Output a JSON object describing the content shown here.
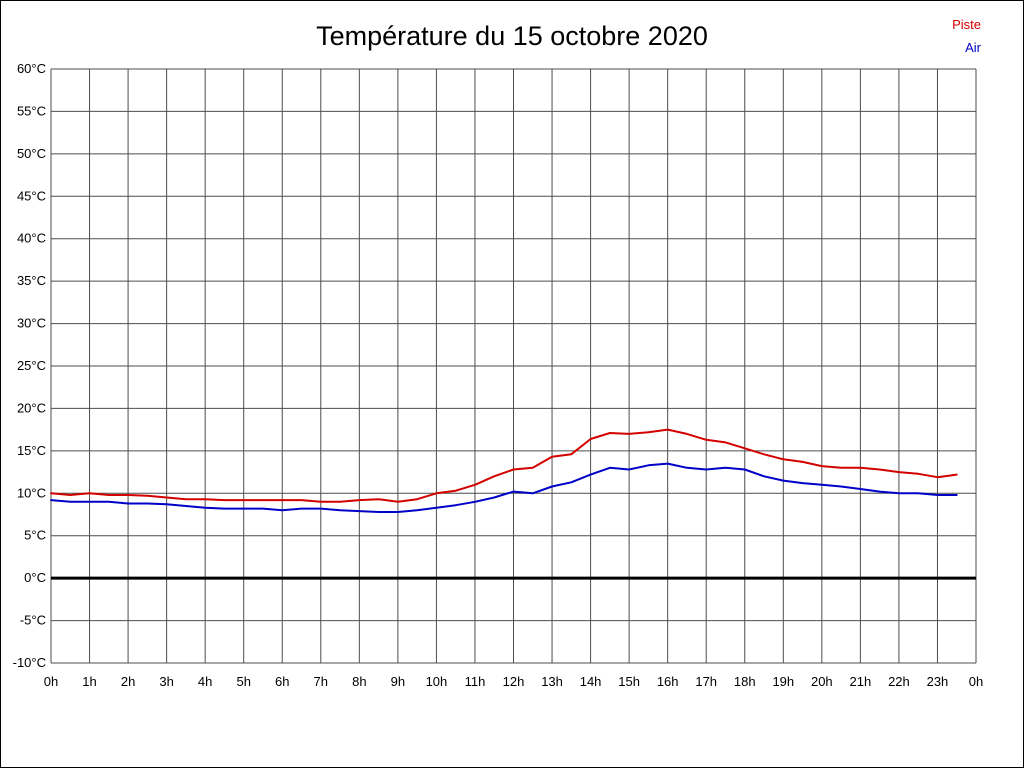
{
  "chart_data": {
    "type": "line",
    "title": "Température du 15 octobre 2020",
    "xlabel": "",
    "ylabel": "",
    "xlim": [
      0,
      24
    ],
    "ylim": [
      -10,
      60
    ],
    "grid": true,
    "legend_position": "top-right",
    "background": "#ffffff",
    "grid_color": "#4d4d4d",
    "zero_line": {
      "value": 0,
      "color": "#000000",
      "width": 3
    },
    "ytick_values": [
      60,
      55,
      50,
      45,
      40,
      35,
      30,
      25,
      20,
      15,
      10,
      5,
      0,
      -5,
      -10
    ],
    "ytick_labels": [
      "60°C",
      "55°C",
      "50°C",
      "45°C",
      "40°C",
      "35°C",
      "30°C",
      "25°C",
      "20°C",
      "15°C",
      "10°C",
      "5°C",
      "0°C",
      "-5°C",
      "-10°C"
    ],
    "xtick_values": [
      0,
      1,
      2,
      3,
      4,
      5,
      6,
      7,
      8,
      9,
      10,
      11,
      12,
      13,
      14,
      15,
      16,
      17,
      18,
      19,
      20,
      21,
      22,
      23,
      24
    ],
    "xtick_labels": [
      "0h",
      "1h",
      "2h",
      "3h",
      "4h",
      "5h",
      "6h",
      "7h",
      "8h",
      "9h",
      "10h",
      "11h",
      "12h",
      "13h",
      "14h",
      "15h",
      "16h",
      "17h",
      "18h",
      "19h",
      "20h",
      "21h",
      "22h",
      "23h",
      "0h"
    ],
    "x": [
      0,
      0.5,
      1,
      1.5,
      2,
      2.5,
      3,
      3.5,
      4,
      4.5,
      5,
      5.5,
      6,
      6.5,
      7,
      7.5,
      8,
      8.5,
      9,
      9.5,
      10,
      10.5,
      11,
      11.5,
      12,
      12.5,
      13,
      13.5,
      14,
      14.5,
      15,
      15.5,
      16,
      16.5,
      17,
      17.5,
      18,
      18.5,
      19,
      19.5,
      20,
      20.5,
      21,
      21.5,
      22,
      22.5,
      23,
      23.5
    ],
    "series": [
      {
        "name": "Piste",
        "color": "#d40000",
        "values": [
          10.0,
          9.8,
          10.0,
          9.8,
          9.8,
          9.7,
          9.5,
          9.3,
          9.3,
          9.2,
          9.2,
          9.2,
          9.2,
          9.2,
          9.0,
          9.0,
          9.2,
          9.3,
          9.0,
          9.3,
          10.0,
          10.3,
          11.0,
          12.0,
          12.8,
          13.0,
          14.3,
          14.6,
          16.4,
          17.1,
          17.0,
          17.2,
          17.5,
          17.0,
          16.3,
          16.0,
          15.3,
          14.6,
          14.0,
          13.7,
          13.2,
          13.0,
          13.0,
          12.8,
          12.5,
          12.3,
          11.9,
          12.2
        ]
      },
      {
        "name": "Air",
        "color": "#0000c8",
        "values": [
          9.2,
          9.0,
          9.0,
          9.0,
          8.8,
          8.8,
          8.7,
          8.5,
          8.3,
          8.2,
          8.2,
          8.2,
          8.0,
          8.2,
          8.2,
          8.0,
          7.9,
          7.8,
          7.8,
          8.0,
          8.3,
          8.6,
          9.0,
          9.5,
          10.2,
          10.0,
          10.8,
          11.3,
          12.2,
          13.0,
          12.8,
          13.3,
          13.5,
          13.0,
          12.8,
          13.0,
          12.8,
          12.0,
          11.5,
          11.2,
          11.0,
          10.8,
          10.5,
          10.2,
          10.0,
          10.0,
          9.8,
          9.8
        ]
      }
    ]
  }
}
